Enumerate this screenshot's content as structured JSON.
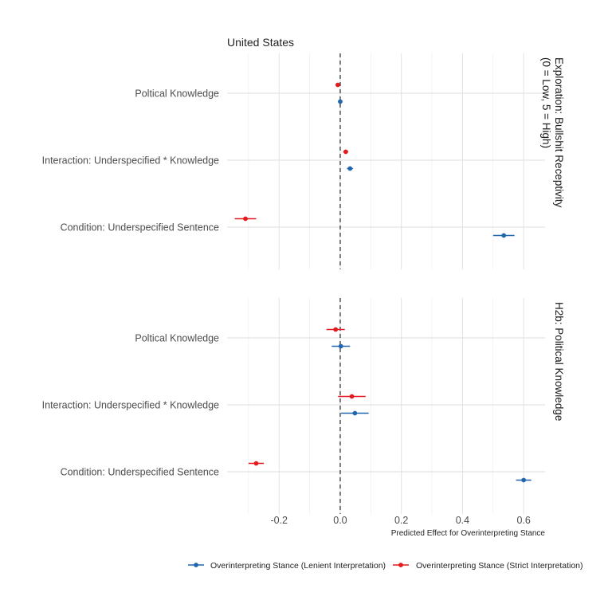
{
  "chart_data": {
    "type": "forest",
    "title": "United States",
    "xlabel": "Predicted Effect for Overinterpreting Stance",
    "xlim": [
      -0.37,
      0.67
    ],
    "xticks": [
      -0.2,
      0.0,
      0.2,
      0.4,
      0.6
    ],
    "xtick_labels": [
      "-0.2",
      "0.0",
      "0.2",
      "0.4",
      "0.6"
    ],
    "reference_line": 0,
    "grid": true,
    "legend_position": "bottom",
    "categories": [
      "Poltical Knowledge",
      "Interaction: Underspecified * Knowledge",
      "Condition: Underspecified Sentence"
    ],
    "series": [
      {
        "name": "Overinterpreting Stance (Lenient Interpretation)",
        "color": "#2166ac"
      },
      {
        "name": "Overinterpreting Stance (Strict Interpretation)",
        "color": "#e41a1c"
      }
    ],
    "panels": [
      {
        "label": [
          "Exploration: Bullshit Receptivity",
          "(0 = Low, 5 = High)"
        ],
        "estimates": {
          "Overinterpreting Stance (Lenient Interpretation)": [
            {
              "category": "Poltical Knowledge",
              "value": 0.0,
              "low": -0.006,
              "high": 0.006
            },
            {
              "category": "Interaction: Underspecified * Knowledge",
              "value": 0.032,
              "low": 0.022,
              "high": 0.042
            },
            {
              "category": "Condition: Underspecified Sentence",
              "value": 0.535,
              "low": 0.5,
              "high": 0.57
            }
          ],
          "Overinterpreting Stance (Strict Interpretation)": [
            {
              "category": "Poltical Knowledge",
              "value": -0.008,
              "low": -0.014,
              "high": -0.002
            },
            {
              "category": "Interaction: Underspecified * Knowledge",
              "value": 0.018,
              "low": 0.01,
              "high": 0.026
            },
            {
              "category": "Condition: Underspecified Sentence",
              "value": -0.31,
              "low": -0.345,
              "high": -0.275
            }
          ]
        }
      },
      {
        "label": [
          "H2b: Political Knowledge"
        ],
        "estimates": {
          "Overinterpreting Stance (Lenient Interpretation)": [
            {
              "category": "Poltical Knowledge",
              "value": 0.002,
              "low": -0.028,
              "high": 0.032
            },
            {
              "category": "Interaction: Underspecified * Knowledge",
              "value": 0.048,
              "low": 0.003,
              "high": 0.093
            },
            {
              "category": "Condition: Underspecified Sentence",
              "value": 0.6,
              "low": 0.575,
              "high": 0.625
            }
          ],
          "Overinterpreting Stance (Strict Interpretation)": [
            {
              "category": "Poltical Knowledge",
              "value": -0.015,
              "low": -0.045,
              "high": 0.015
            },
            {
              "category": "Interaction: Underspecified * Knowledge",
              "value": 0.038,
              "low": -0.007,
              "high": 0.083
            },
            {
              "category": "Condition: Underspecified Sentence",
              "value": -0.275,
              "low": -0.3,
              "high": -0.25
            }
          ]
        }
      }
    ]
  }
}
